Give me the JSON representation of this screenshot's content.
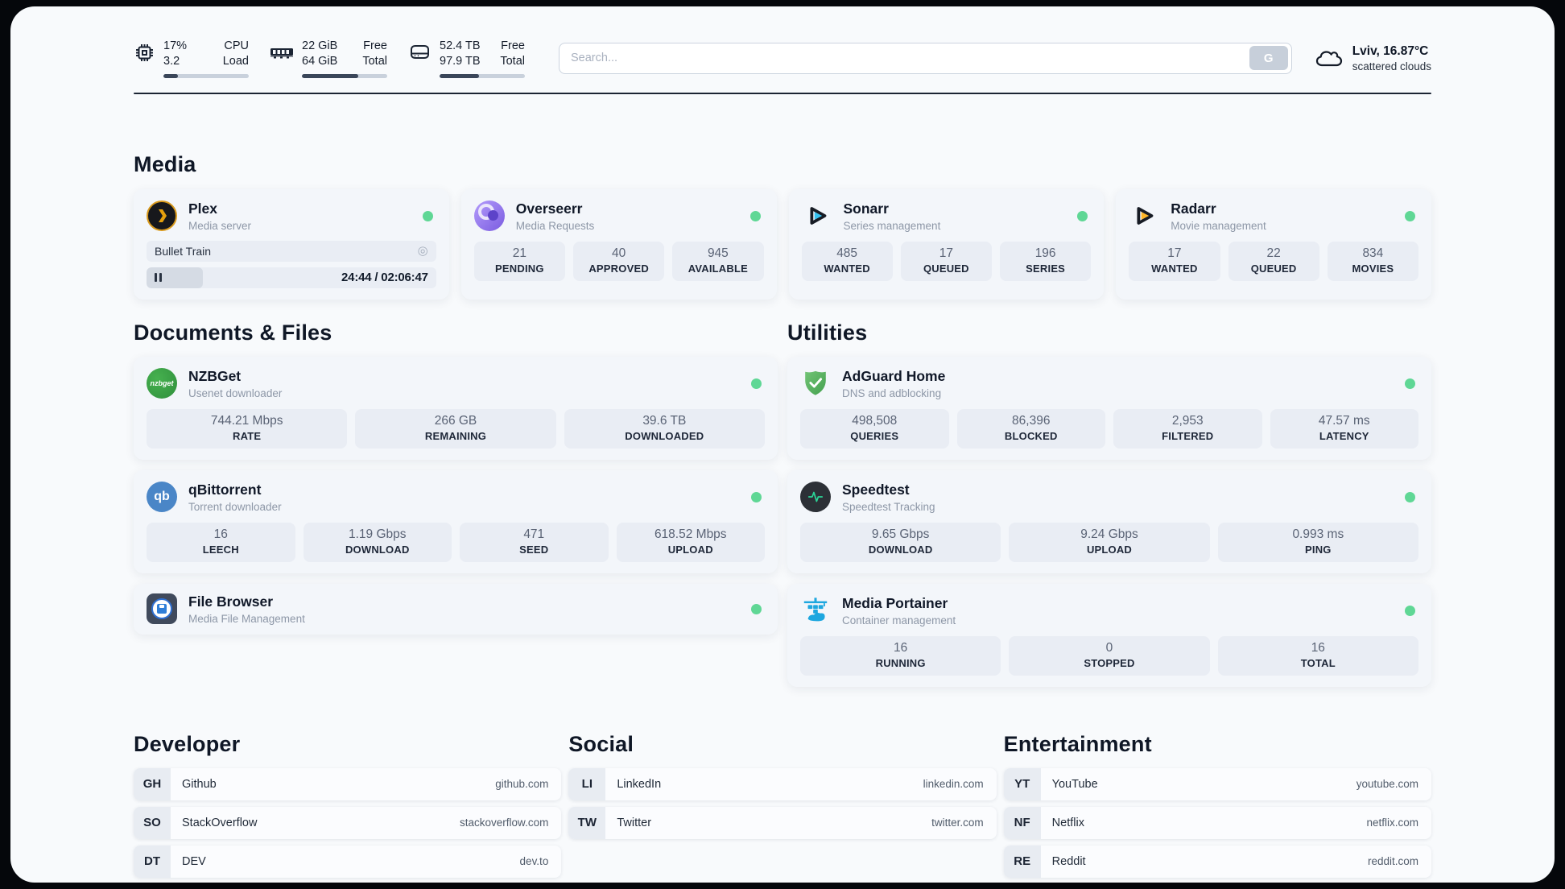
{
  "header": {
    "system_stats": [
      {
        "icon": "cpu-icon",
        "value_top": "17%",
        "label_top": "CPU",
        "value_bottom": "3.2",
        "label_bottom": "Load",
        "progress_percent": 17
      },
      {
        "icon": "ram-icon",
        "value_top": "22 GiB",
        "label_top": "Free",
        "value_bottom": "64 GiB",
        "label_bottom": "Total",
        "progress_percent": 66
      },
      {
        "icon": "disk-icon",
        "value_top": "52.4 TB",
        "label_top": "Free",
        "value_bottom": "97.9 TB",
        "label_bottom": "Total",
        "progress_percent": 46
      }
    ],
    "search": {
      "placeholder": "Search...",
      "button_label": "G"
    },
    "weather": {
      "icon": "cloud-icon",
      "line1": "Lviv, 16.87°C",
      "line2": "scattered clouds"
    }
  },
  "sections": {
    "media": {
      "title": "Media",
      "apps": [
        {
          "name": "Plex",
          "description": "Media server",
          "icon": "plex-icon",
          "status_color": "#5fd795",
          "media_player": {
            "now_playing": "Bullet Train",
            "time": "24:44 / 02:06:47",
            "progress_percent": 19.5
          }
        },
        {
          "name": "Overseerr",
          "description": "Media Requests",
          "icon": "overseerr-icon",
          "status_color": "#5fd795",
          "stats": [
            {
              "value": "21",
              "label": "PENDING"
            },
            {
              "value": "40",
              "label": "APPROVED"
            },
            {
              "value": "945",
              "label": "AVAILABLE"
            }
          ]
        },
        {
          "name": "Sonarr",
          "description": "Series management",
          "icon": "sonarr-icon",
          "status_color": "#5fd795",
          "stats": [
            {
              "value": "485",
              "label": "WANTED"
            },
            {
              "value": "17",
              "label": "QUEUED"
            },
            {
              "value": "196",
              "label": "SERIES"
            }
          ]
        },
        {
          "name": "Radarr",
          "description": "Movie management",
          "icon": "radarr-icon",
          "status_color": "#5fd795",
          "stats": [
            {
              "value": "17",
              "label": "WANTED"
            },
            {
              "value": "22",
              "label": "QUEUED"
            },
            {
              "value": "834",
              "label": "MOVIES"
            }
          ]
        }
      ]
    },
    "documents": {
      "title": "Documents & Files",
      "apps": [
        {
          "name": "NZBGet",
          "description": "Usenet downloader",
          "icon": "nzbget-icon",
          "status_color": "#5fd795",
          "stats": [
            {
              "value": "744.21 Mbps",
              "label": "RATE"
            },
            {
              "value": "266 GB",
              "label": "REMAINING"
            },
            {
              "value": "39.6 TB",
              "label": "DOWNLOADED"
            }
          ]
        },
        {
          "name": "qBittorrent",
          "description": "Torrent downloader",
          "icon": "qbittorrent-icon",
          "status_color": "#5fd795",
          "stats": [
            {
              "value": "16",
              "label": "LEECH"
            },
            {
              "value": "1.19 Gbps",
              "label": "DOWNLOAD"
            },
            {
              "value": "471",
              "label": "SEED"
            },
            {
              "value": "618.52 Mbps",
              "label": "UPLOAD"
            }
          ]
        },
        {
          "name": "File Browser",
          "description": "Media File Management",
          "icon": "filebrowser-icon",
          "status_color": "#5fd795",
          "stats": []
        }
      ]
    },
    "utilities": {
      "title": "Utilities",
      "apps": [
        {
          "name": "AdGuard Home",
          "description": "DNS and adblocking",
          "icon": "adguard-icon",
          "status_color": "#5fd795",
          "stats": [
            {
              "value": "498,508",
              "label": "QUERIES"
            },
            {
              "value": "86,396",
              "label": "BLOCKED"
            },
            {
              "value": "2,953",
              "label": "FILTERED"
            },
            {
              "value": "47.57 ms",
              "label": "LATENCY"
            }
          ]
        },
        {
          "name": "Speedtest",
          "description": "Speedtest Tracking",
          "icon": "speedtest-icon",
          "status_color": "#5fd795",
          "stats": [
            {
              "value": "9.65 Gbps",
              "label": "DOWNLOAD"
            },
            {
              "value": "9.24 Gbps",
              "label": "UPLOAD"
            },
            {
              "value": "0.993 ms",
              "label": "PING"
            }
          ]
        },
        {
          "name": "Media Portainer",
          "description": "Container management",
          "icon": "portainer-icon",
          "status_color": "#5fd795",
          "stats": [
            {
              "value": "16",
              "label": "RUNNING"
            },
            {
              "value": "0",
              "label": "STOPPED"
            },
            {
              "value": "16",
              "label": "TOTAL"
            }
          ]
        }
      ]
    },
    "links": [
      {
        "title": "Developer",
        "items": [
          {
            "badge": "GH",
            "name": "Github",
            "url": "github.com"
          },
          {
            "badge": "SO",
            "name": "StackOverflow",
            "url": "stackoverflow.com"
          },
          {
            "badge": "DT",
            "name": "DEV",
            "url": "dev.to"
          }
        ]
      },
      {
        "title": "Social",
        "items": [
          {
            "badge": "LI",
            "name": "LinkedIn",
            "url": "linkedin.com"
          },
          {
            "badge": "TW",
            "name": "Twitter",
            "url": "twitter.com"
          }
        ]
      },
      {
        "title": "Entertainment",
        "items": [
          {
            "badge": "YT",
            "name": "YouTube",
            "url": "youtube.com"
          },
          {
            "badge": "NF",
            "name": "Netflix",
            "url": "netflix.com"
          },
          {
            "badge": "RE",
            "name": "Reddit",
            "url": "reddit.com"
          }
        ]
      }
    ]
  },
  "colors": {
    "status_online": "#5fd795",
    "accent_dark": "#3a4659"
  }
}
